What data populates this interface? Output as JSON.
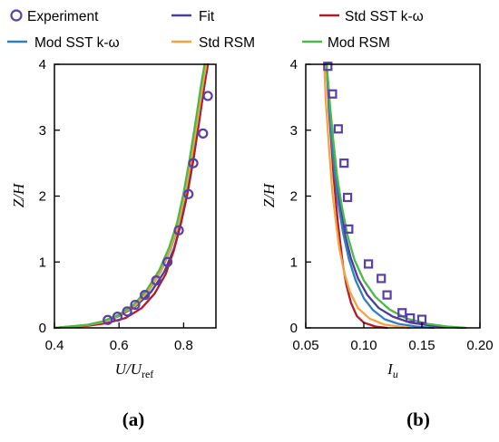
{
  "legend": {
    "entries": [
      {
        "label": "Experiment",
        "color": "#5b3fa6",
        "marker": "circle"
      },
      {
        "label": "Fit",
        "color": "#4b3c99",
        "marker": "line"
      },
      {
        "label": "Std SST k-ω",
        "color": "#b01c2c",
        "marker": "line"
      },
      {
        "label": "Mod SST k-ω",
        "color": "#2f7fc1",
        "marker": "line"
      },
      {
        "label": "Std RSM",
        "color": "#f4a340",
        "marker": "line"
      },
      {
        "label": "Mod RSM",
        "color": "#4cb848",
        "marker": "line"
      }
    ]
  },
  "chart_data": [
    {
      "type": "line",
      "panel_label": "(a)",
      "xlabel": "U/U",
      "xlabel_sub": "ref",
      "ylabel": "Z/H",
      "xlim": [
        0.4,
        0.9
      ],
      "ylim": [
        0,
        4
      ],
      "xticks": [
        "0.4",
        "0.6",
        "0.8"
      ],
      "xtick_values": [
        0.4,
        0.6,
        0.8
      ],
      "yticks": [
        "0",
        "1",
        "2",
        "3",
        "4"
      ],
      "ytick_values": [
        0,
        1,
        2,
        3,
        4
      ],
      "series": [
        {
          "name": "Experiment",
          "marker": "circle",
          "color": "#5b3fa6",
          "x": [
            0.565,
            0.595,
            0.625,
            0.65,
            0.68,
            0.715,
            0.75,
            0.785,
            0.815,
            0.83,
            0.86,
            0.875
          ],
          "y": [
            0.12,
            0.17,
            0.25,
            0.35,
            0.5,
            0.72,
            1.0,
            1.48,
            2.03,
            2.5,
            2.95,
            3.52
          ]
        },
        {
          "name": "Fit",
          "color": "#4b3c99",
          "x": [
            0.4,
            0.5,
            0.55,
            0.6,
            0.65,
            0.7,
            0.74,
            0.77,
            0.79,
            0.81,
            0.83,
            0.85,
            0.865,
            0.875
          ],
          "y": [
            0.0,
            0.04,
            0.09,
            0.18,
            0.32,
            0.55,
            0.85,
            1.2,
            1.55,
            2.0,
            2.55,
            3.2,
            3.7,
            4.0
          ]
        },
        {
          "name": "Std SST k-ω",
          "color": "#b01c2c",
          "x": [
            0.4,
            0.5,
            0.56,
            0.62,
            0.67,
            0.71,
            0.745,
            0.77,
            0.79,
            0.81,
            0.83,
            0.85,
            0.865,
            0.875
          ],
          "y": [
            0.0,
            0.03,
            0.07,
            0.15,
            0.3,
            0.52,
            0.82,
            1.18,
            1.55,
            2.0,
            2.55,
            3.2,
            3.7,
            4.0
          ]
        },
        {
          "name": "Mod SST k-ω",
          "color": "#2f7fc1",
          "x": [
            0.4,
            0.5,
            0.55,
            0.6,
            0.65,
            0.69,
            0.73,
            0.76,
            0.785,
            0.805,
            0.825,
            0.845,
            0.86,
            0.87
          ],
          "y": [
            0.0,
            0.04,
            0.09,
            0.18,
            0.33,
            0.55,
            0.86,
            1.2,
            1.58,
            2.02,
            2.58,
            3.2,
            3.7,
            4.0
          ]
        },
        {
          "name": "Std RSM",
          "color": "#f4a340",
          "x": [
            0.4,
            0.5,
            0.55,
            0.6,
            0.65,
            0.69,
            0.73,
            0.76,
            0.785,
            0.805,
            0.825,
            0.845,
            0.86,
            0.87
          ],
          "y": [
            0.0,
            0.04,
            0.09,
            0.19,
            0.34,
            0.56,
            0.87,
            1.22,
            1.6,
            2.05,
            2.6,
            3.22,
            3.72,
            4.0
          ]
        },
        {
          "name": "Mod RSM",
          "color": "#4cb848",
          "x": [
            0.4,
            0.5,
            0.55,
            0.6,
            0.645,
            0.685,
            0.725,
            0.755,
            0.78,
            0.8,
            0.82,
            0.84,
            0.855,
            0.865
          ],
          "y": [
            0.0,
            0.045,
            0.1,
            0.2,
            0.35,
            0.57,
            0.88,
            1.22,
            1.6,
            2.05,
            2.6,
            3.22,
            3.72,
            4.0
          ]
        }
      ]
    },
    {
      "type": "line",
      "panel_label": "(b)",
      "xlabel": "I",
      "xlabel_sub": "u",
      "ylabel": "Z/H",
      "xlim": [
        0.05,
        0.2
      ],
      "ylim": [
        0,
        4
      ],
      "xticks": [
        "0.05",
        "0.10",
        "0.15",
        "0.20"
      ],
      "xtick_values": [
        0.05,
        0.1,
        0.15,
        0.2
      ],
      "yticks": [
        "0",
        "1",
        "2",
        "3",
        "4"
      ],
      "ytick_values": [
        0,
        1,
        2,
        3,
        4
      ],
      "series": [
        {
          "name": "Experiment",
          "marker": "square",
          "color": "#5b3fa6",
          "x": [
            0.069,
            0.073,
            0.078,
            0.083,
            0.086,
            0.087,
            0.104,
            0.115,
            0.12,
            0.133,
            0.14,
            0.15
          ],
          "y": [
            3.97,
            3.55,
            3.02,
            2.5,
            1.98,
            1.5,
            0.97,
            0.75,
            0.5,
            0.23,
            0.15,
            0.13
          ]
        },
        {
          "name": "Fit",
          "color": "#4b3c99",
          "x": [
            0.068,
            0.071,
            0.074,
            0.077,
            0.08,
            0.084,
            0.089,
            0.095,
            0.103,
            0.113,
            0.125,
            0.14,
            0.16,
            0.185
          ],
          "y": [
            4.0,
            3.3,
            2.7,
            2.2,
            1.8,
            1.4,
            1.05,
            0.75,
            0.5,
            0.3,
            0.17,
            0.08,
            0.03,
            0.0
          ]
        },
        {
          "name": "Std SST k-ω",
          "color": "#b01c2c",
          "x": [
            0.068,
            0.07,
            0.072,
            0.074,
            0.076,
            0.078,
            0.08,
            0.082,
            0.085,
            0.089,
            0.094,
            0.1,
            0.11,
            0.12
          ],
          "y": [
            4.0,
            3.3,
            2.8,
            2.3,
            1.9,
            1.55,
            1.25,
            0.95,
            0.65,
            0.38,
            0.18,
            0.08,
            0.02,
            0.0
          ]
        },
        {
          "name": "Mod SST k-ω",
          "color": "#2f7fc1",
          "x": [
            0.068,
            0.07,
            0.072,
            0.075,
            0.078,
            0.082,
            0.087,
            0.093,
            0.1,
            0.108,
            0.118,
            0.13,
            0.145,
            0.16
          ],
          "y": [
            4.0,
            3.4,
            2.9,
            2.35,
            1.9,
            1.45,
            1.05,
            0.72,
            0.45,
            0.27,
            0.13,
            0.06,
            0.02,
            0.0
          ]
        },
        {
          "name": "Std RSM",
          "color": "#f4a340",
          "x": [
            0.066,
            0.067,
            0.069,
            0.071,
            0.073,
            0.076,
            0.079,
            0.083,
            0.088,
            0.095,
            0.105,
            0.118,
            0.13,
            0.14
          ],
          "y": [
            4.0,
            3.5,
            3.0,
            2.5,
            2.05,
            1.6,
            1.2,
            0.85,
            0.55,
            0.3,
            0.14,
            0.05,
            0.02,
            0.0
          ]
        },
        {
          "name": "Mod RSM",
          "color": "#4cb848",
          "x": [
            0.068,
            0.071,
            0.074,
            0.077,
            0.081,
            0.086,
            0.092,
            0.1,
            0.11,
            0.122,
            0.137,
            0.155,
            0.172,
            0.188
          ],
          "y": [
            4.0,
            3.35,
            2.8,
            2.3,
            1.85,
            1.4,
            1.03,
            0.72,
            0.47,
            0.28,
            0.14,
            0.06,
            0.02,
            0.0
          ]
        }
      ]
    }
  ]
}
